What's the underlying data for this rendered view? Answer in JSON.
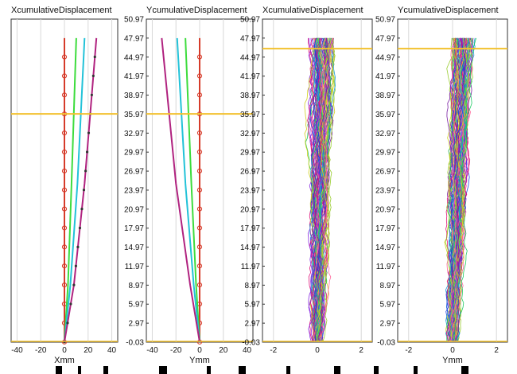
{
  "chart_data": [
    {
      "type": "line",
      "title": "XcumulativeDisplacement",
      "xlabel": "Xmm",
      "xlim": [
        -45,
        45
      ],
      "ylim": [
        -0.03,
        50.97
      ],
      "xticks": [
        "-40",
        "-20",
        "0",
        "20",
        "40"
      ],
      "xtick_values": [
        -40,
        -20,
        0,
        20,
        40
      ],
      "yticks": [],
      "reference_line_y": 36.0,
      "series": [
        {
          "color": "#d63b2a",
          "marker": "circle",
          "x": [
            0,
            0
          ],
          "y": [
            0,
            47.97
          ]
        },
        {
          "color": "#3ddc3d",
          "x": [
            0,
            3,
            6,
            10
          ],
          "y": [
            0,
            9,
            25,
            47.97
          ]
        },
        {
          "color": "#22c2d8",
          "x": [
            0,
            5,
            11,
            17
          ],
          "y": [
            0,
            9,
            25,
            47.97
          ]
        },
        {
          "color": "#b0227f",
          "marker": "dot",
          "x": [
            0,
            8,
            17,
            27
          ],
          "y": [
            0,
            9,
            25,
            47.97
          ]
        }
      ]
    },
    {
      "type": "line",
      "title": "YcumulativeDisplacement",
      "xlabel": "Ymm",
      "xlim": [
        -45,
        45
      ],
      "ylim": [
        -0.03,
        50.97
      ],
      "xticks": [
        "-40",
        "-20",
        "0",
        "20",
        "40"
      ],
      "xtick_values": [
        -40,
        -20,
        0,
        20,
        40
      ],
      "yticks": [
        "50.97",
        "47.97",
        "44.97",
        "41.97",
        "38.97",
        "35.97",
        "32.97",
        "29.97",
        "26.97",
        "23.97",
        "20.97",
        "17.97",
        "14.97",
        "11.97",
        "8.97",
        "5.97",
        "2.97",
        "-0.03"
      ],
      "ytick_values": [
        50.97,
        47.97,
        44.97,
        41.97,
        38.97,
        35.97,
        32.97,
        29.97,
        26.97,
        23.97,
        20.97,
        17.97,
        14.97,
        11.97,
        8.97,
        5.97,
        2.97,
        -0.03
      ],
      "reference_line_y": 36.0,
      "series": [
        {
          "color": "#d63b2a",
          "marker": "circle",
          "x": [
            0,
            0
          ],
          "y": [
            0,
            47.97
          ]
        },
        {
          "color": "#3ddc3d",
          "x": [
            0,
            -3,
            -7,
            -12
          ],
          "y": [
            0,
            9,
            25,
            47.97
          ]
        },
        {
          "color": "#22c2d8",
          "x": [
            0,
            -5,
            -12,
            -19
          ],
          "y": [
            0,
            9,
            25,
            47.97
          ]
        },
        {
          "color": "#b0227f",
          "x": [
            0,
            -8,
            -20,
            -32
          ],
          "y": [
            0,
            9,
            25,
            47.97
          ]
        }
      ]
    },
    {
      "type": "line",
      "title": "XcumulativeDisplacement",
      "xlabel": "",
      "xlim": [
        -2.5,
        2.5
      ],
      "ylim": [
        -0.03,
        50.97
      ],
      "xticks": [
        "-2",
        "0",
        "2"
      ],
      "xtick_values": [
        -2,
        0,
        2
      ],
      "yticks": [
        "50.97",
        "47.97",
        "44.97",
        "41.97",
        "38.97",
        "35.97",
        "32.97",
        "29.97",
        "26.97",
        "23.97",
        "20.97",
        "17.97",
        "14.97",
        "11.97",
        "8.97",
        "5.97",
        "2.97",
        "-0.03"
      ],
      "ytick_values": [
        50.97,
        47.97,
        44.97,
        41.97,
        38.97,
        35.97,
        32.97,
        29.97,
        26.97,
        23.97,
        20.97,
        17.97,
        14.97,
        11.97,
        8.97,
        5.97,
        2.97,
        -0.03
      ],
      "reference_line_y": 46.3,
      "random_walk": {
        "count": 90,
        "x_center": 0.2,
        "x_spread_top": 0.9,
        "x_spread_bottom": 0.25,
        "y_top": 47.97
      },
      "palette": [
        "#e0147a",
        "#8a2be2",
        "#2244dd",
        "#1f9fd6",
        "#22cc66",
        "#9acd32",
        "#d0d020",
        "#ff6699",
        "#7a1fa2"
      ]
    },
    {
      "type": "line",
      "title": "YcumulativeDisplacement",
      "xlabel": "Ymm",
      "xlim": [
        -2.5,
        2.5
      ],
      "ylim": [
        -0.03,
        50.97
      ],
      "xticks": [
        "-2",
        "0",
        "2"
      ],
      "xtick_values": [
        -2,
        0,
        2
      ],
      "yticks": [
        "50.97",
        "47.97",
        "44.97",
        "41.97",
        "38.97",
        "35.97",
        "32.97",
        "29.97",
        "26.97",
        "23.97",
        "20.97",
        "17.97",
        "14.97",
        "11.97",
        "8.97",
        "5.97",
        "2.97",
        "-0.03"
      ],
      "ytick_values": [
        50.97,
        47.97,
        44.97,
        41.97,
        38.97,
        35.97,
        32.97,
        29.97,
        26.97,
        23.97,
        20.97,
        17.97,
        14.97,
        11.97,
        8.97,
        5.97,
        2.97,
        -0.03
      ],
      "reference_line_y": 46.3,
      "random_walk": {
        "count": 90,
        "x_center": 0.45,
        "x_spread_top": 0.75,
        "x_spread_bottom": 0.25,
        "y_top": 47.97
      },
      "palette": [
        "#e0147a",
        "#8a2be2",
        "#2244dd",
        "#1f9fd6",
        "#22cc66",
        "#9acd32",
        "#d0d020",
        "#ff6699",
        "#7a1fa2"
      ]
    }
  ],
  "colors": {
    "reference_line": "#f2c12e",
    "axis": "#333333"
  }
}
